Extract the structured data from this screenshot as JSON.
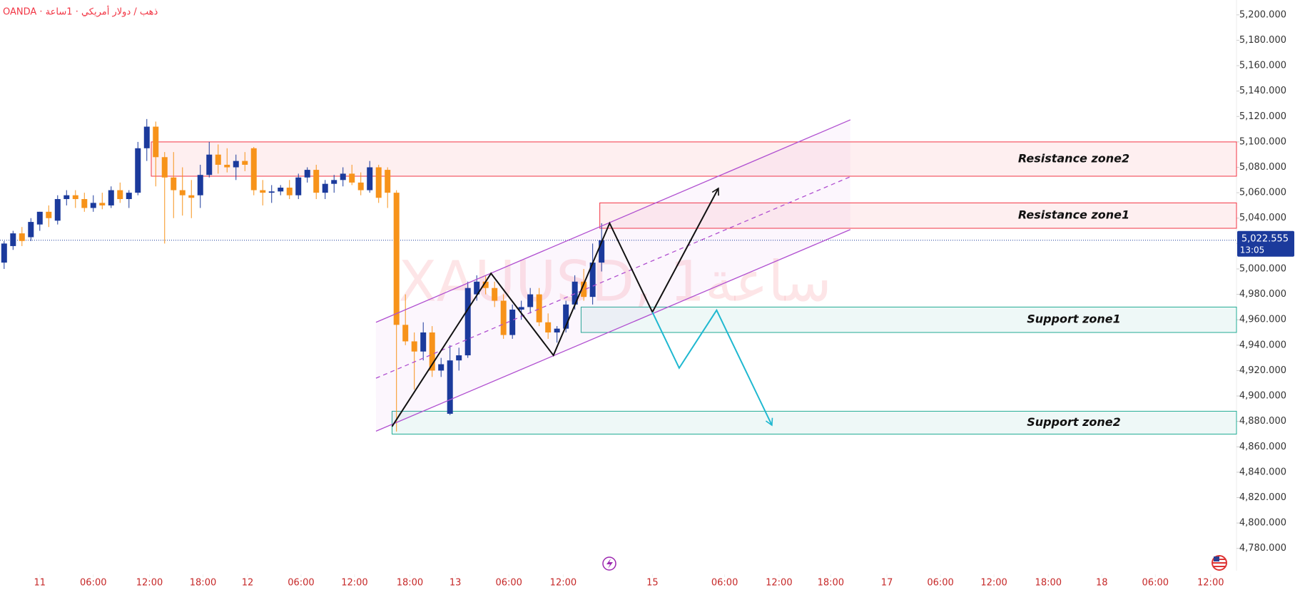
{
  "chart_data": {
    "type": "candlestick",
    "header": "OANDA · ذهب / دولار أمريكي · 1ساعة",
    "watermark": "XAUUSD, 1ساعة",
    "open": [
      5005,
      5018,
      5028,
      5025,
      5035,
      5045,
      5038,
      5055,
      5058,
      5055,
      5048,
      5052,
      5050,
      5062,
      5055,
      5060,
      5095,
      5112,
      5088,
      5072,
      5062,
      5058,
      5058,
      5074,
      5090,
      5082,
      5080,
      5085,
      5095,
      5062,
      5060,
      5061,
      5064,
      5058,
      5072,
      5078,
      5060,
      5067,
      5070,
      5075,
      5068,
      5062,
      5080,
      5078,
      5060,
      4956,
      4943,
      4935,
      4950,
      4920,
      4886,
      4928,
      4932,
      4980,
      4990,
      4985,
      4975,
      4948,
      4968,
      4970,
      4980,
      4958,
      4950,
      4953,
      4972,
      4990,
      4978,
      5005
    ],
    "high": [
      5022,
      5030,
      5033,
      5040,
      5045,
      5050,
      5058,
      5062,
      5062,
      5060,
      5058,
      5060,
      5065,
      5068,
      5062,
      5100,
      5118,
      5116,
      5092,
      5092,
      5080,
      5070,
      5082,
      5100,
      5098,
      5095,
      5090,
      5092,
      5096,
      5070,
      5066,
      5066,
      5070,
      5075,
      5080,
      5082,
      5070,
      5074,
      5080,
      5082,
      5076,
      5085,
      5082,
      5080,
      5062,
      4980,
      4950,
      4958,
      4955,
      4930,
      4940,
      4938,
      4990,
      4995,
      4995,
      4990,
      4980,
      4972,
      4975,
      4985,
      4985,
      4965,
      4955,
      4975,
      4995,
      5000,
      5020,
      5036
    ],
    "low": [
      5000,
      5015,
      5018,
      5022,
      5030,
      5033,
      5035,
      5050,
      5048,
      5045,
      5045,
      5047,
      5048,
      5052,
      5048,
      5058,
      5085,
      5065,
      5020,
      5040,
      5042,
      5040,
      5048,
      5072,
      5075,
      5076,
      5070,
      5077,
      5058,
      5050,
      5052,
      5058,
      5055,
      5055,
      5068,
      5055,
      5055,
      5060,
      5065,
      5066,
      5058,
      5060,
      5052,
      5048,
      4872,
      4940,
      4905,
      4928,
      4915,
      4915,
      4885,
      4920,
      4930,
      4975,
      4980,
      4970,
      4945,
      4945,
      4960,
      4965,
      4955,
      4945,
      4942,
      4950,
      4968,
      4975,
      4972,
      4998
    ],
    "close": [
      5020,
      5028,
      5022,
      5037,
      5045,
      5040,
      5055,
      5058,
      5055,
      5048,
      5052,
      5050,
      5062,
      5055,
      5060,
      5095,
      5112,
      5088,
      5072,
      5062,
      5058,
      5056,
      5074,
      5090,
      5082,
      5080,
      5085,
      5082,
      5062,
      5060,
      5061,
      5064,
      5058,
      5072,
      5078,
      5060,
      5067,
      5070,
      5075,
      5068,
      5062,
      5080,
      5056,
      5060,
      4956,
      4943,
      4935,
      4950,
      4920,
      4925,
      4928,
      4932,
      4985,
      4990,
      4985,
      4975,
      4948,
      4968,
      4970,
      4980,
      4958,
      4950,
      4953,
      4972,
      4990,
      4978,
      5005,
      5022.555
    ],
    "up_color": "#1b3a9c",
    "down_color": "#f7931a",
    "ylim": [
      4763,
      5211.7
    ],
    "yticks": [
      {
        "value": 4780,
        "label": "4,780.000"
      },
      {
        "value": 4800,
        "label": "4,800.000"
      },
      {
        "value": 4820,
        "label": "4,820.000"
      },
      {
        "value": 4840,
        "label": "4,840.000"
      },
      {
        "value": 4860,
        "label": "4,860.000"
      },
      {
        "value": 4880,
        "label": "4,880.000"
      },
      {
        "value": 4900,
        "label": "4,900.000"
      },
      {
        "value": 4920,
        "label": "4,920.000"
      },
      {
        "value": 4940,
        "label": "4,940.000"
      },
      {
        "value": 4960,
        "label": "4,960.000"
      },
      {
        "value": 4980,
        "label": "4,980.000"
      },
      {
        "value": 5000,
        "label": "5,000.000"
      },
      {
        "value": 5020,
        "label": "5,020.000"
      },
      {
        "value": 5040,
        "label": "5,040.000"
      },
      {
        "value": 5060,
        "label": "5,060.000"
      },
      {
        "value": 5080,
        "label": "5,080.000"
      },
      {
        "value": 5100,
        "label": "5,100.000"
      },
      {
        "value": 5120,
        "label": "5,120.000"
      },
      {
        "value": 5140,
        "label": "5,140.000"
      },
      {
        "value": 5160,
        "label": "5,160.000"
      },
      {
        "value": 5180,
        "label": "5,180.000"
      },
      {
        "value": 5200,
        "label": "5,200.000"
      }
    ],
    "xlim": [
      -0.464,
      138.2
    ],
    "xticks": [
      {
        "value": 4,
        "label": "11"
      },
      {
        "value": 10,
        "label": "06:00"
      },
      {
        "value": 16.3,
        "label": "12:00"
      },
      {
        "value": 22.3,
        "label": "18:00"
      },
      {
        "value": 27.3,
        "label": "12"
      },
      {
        "value": 33.3,
        "label": "06:00"
      },
      {
        "value": 39.3,
        "label": "12:00"
      },
      {
        "value": 45.5,
        "label": "18:00"
      },
      {
        "value": 50.6,
        "label": "13"
      },
      {
        "value": 56.6,
        "label": "06:00"
      },
      {
        "value": 62.7,
        "label": "12:00"
      },
      {
        "value": 72.7,
        "label": "15"
      },
      {
        "value": 80.8,
        "label": "06:00"
      },
      {
        "value": 86.9,
        "label": "12:00"
      },
      {
        "value": 92.7,
        "label": "18:00"
      },
      {
        "value": 99,
        "label": "17"
      },
      {
        "value": 105,
        "label": "06:00"
      },
      {
        "value": 111,
        "label": "12:00"
      },
      {
        "value": 117.1,
        "label": "18:00"
      },
      {
        "value": 123.1,
        "label": "18"
      },
      {
        "value": 129.1,
        "label": "06:00"
      },
      {
        "value": 135.3,
        "label": "12:00"
      }
    ],
    "last_price": {
      "value": 5022.555,
      "label": "5,022.555"
    },
    "countdown": "13:05",
    "zones": [
      {
        "label": "Resistance zone2",
        "low": 5073,
        "high": 5100,
        "start": 16.5,
        "color": "#f23645"
      },
      {
        "label": "Resistance zone1",
        "low": 5032,
        "high": 5052,
        "start": 66.8,
        "color": "#f23645"
      },
      {
        "label": "Support zone1",
        "low": 4950,
        "high": 4970,
        "start": 64.7,
        "color": "#22ab94"
      },
      {
        "label": "Support zone2",
        "low": 4870,
        "high": 4888,
        "start": 43.5,
        "color": "#22ab94"
      }
    ],
    "lines": [
      {
        "points": [
          [
            41.7,
            4958
          ],
          [
            94.9,
            5117.4
          ]
        ],
        "color": "#b04fd0",
        "dashed": false,
        "arrow": false
      },
      {
        "points": [
          [
            41.7,
            4872.3
          ],
          [
            94.9,
            5031
          ]
        ],
        "color": "#b04fd0",
        "dashed": false,
        "arrow": false
      },
      {
        "points": [
          [
            41.7,
            4914
          ],
          [
            94.9,
            5072.6
          ]
        ],
        "color": "#b04fd0",
        "dashed": true,
        "arrow": false
      },
      {
        "points": [
          [
            43.5,
            4876
          ],
          [
            54.6,
            4996.5
          ],
          [
            61.6,
            4932
          ],
          [
            67.9,
            5036
          ],
          [
            72.7,
            4966
          ],
          [
            80.1,
            5063.5
          ]
        ],
        "color": "#111111",
        "dashed": false,
        "arrow": true
      },
      {
        "points": [
          [
            72.7,
            4966
          ],
          [
            75.7,
            4922
          ],
          [
            79.9,
            4967.5
          ],
          [
            86.1,
            4877
          ]
        ],
        "color": "#1fb8d0",
        "dashed": false,
        "arrow": true
      }
    ]
  }
}
